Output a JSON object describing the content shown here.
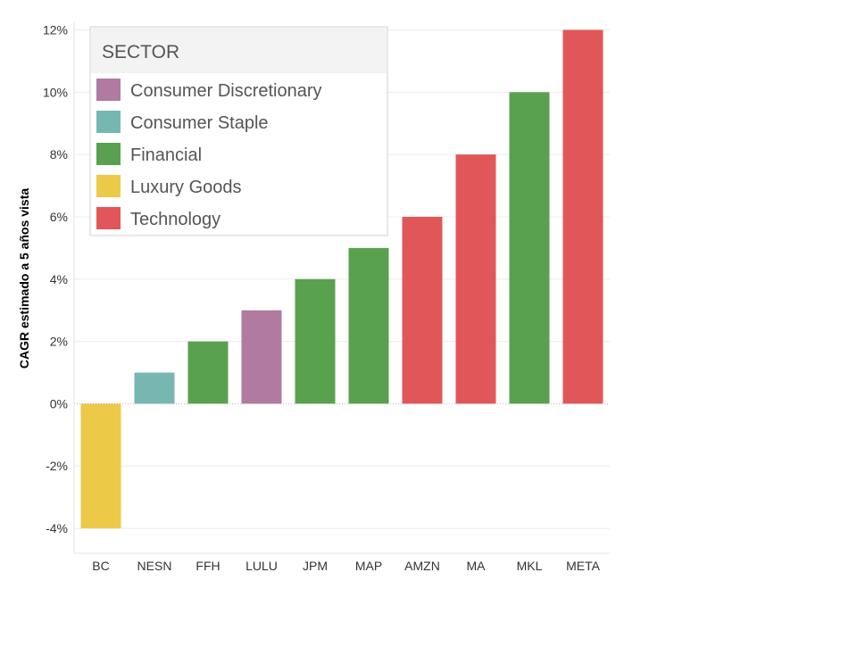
{
  "chart_data": {
    "type": "bar",
    "categories": [
      "BC",
      "NESN",
      "FFH",
      "LULU",
      "JPM",
      "MAP",
      "AMZN",
      "MA",
      "MKL",
      "META"
    ],
    "values": [
      -4,
      1,
      2,
      3,
      4,
      5,
      6,
      8,
      10,
      12
    ],
    "sectors": [
      "Luxury Goods",
      "Consumer Staple",
      "Financial",
      "Consumer Discretionary",
      "Financial",
      "Financial",
      "Technology",
      "Technology",
      "Financial",
      "Technology"
    ],
    "ylabel": "CAGR estimado a 5 años vista",
    "xlabel": "",
    "ylim": [
      -4.8,
      12.1
    ],
    "yticks": [
      -4,
      -2,
      0,
      2,
      4,
      6,
      8,
      10,
      12
    ],
    "ytick_labels": [
      "-4%",
      "-2%",
      "0%",
      "2%",
      "4%",
      "6%",
      "8%",
      "10%",
      "12%"
    ],
    "grid": true,
    "legend": {
      "title": "SECTOR",
      "placement": "top-left",
      "items": [
        {
          "label": "Consumer Discretionary",
          "color": "#b07aa1"
        },
        {
          "label": "Consumer Staple",
          "color": "#76b7b2"
        },
        {
          "label": "Financial",
          "color": "#59a14f"
        },
        {
          "label": "Luxury Goods",
          "color": "#edc948"
        },
        {
          "label": "Technology",
          "color": "#e15759"
        }
      ]
    }
  }
}
